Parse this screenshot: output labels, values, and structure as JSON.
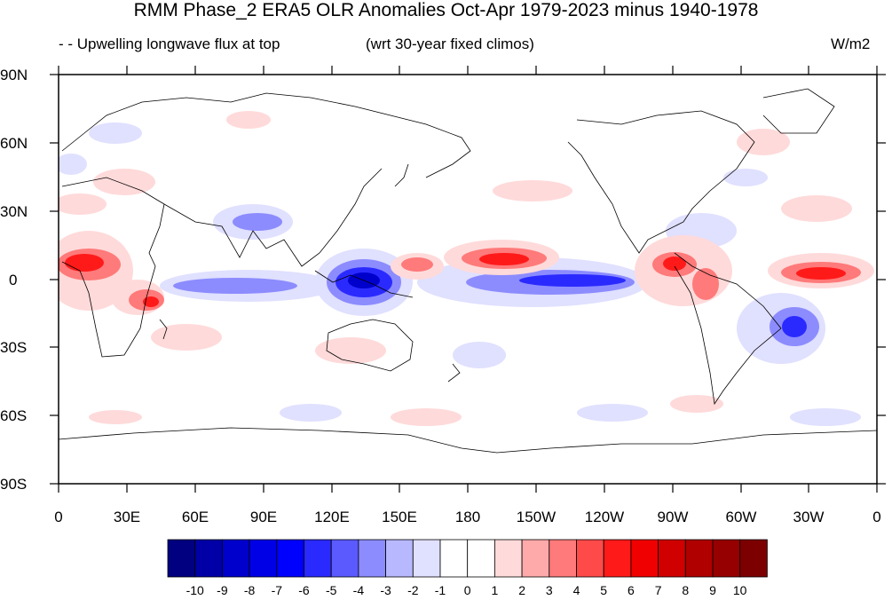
{
  "title": "RMM Phase_2 ERA5 OLR Anomalies Oct-Apr 1979-2023 minus 1940-1978",
  "subtitle_left": "- - Upwelling longwave flux at top",
  "subtitle_mid": "(wrt 30-year fixed climos)",
  "units": "W/m2",
  "lat_labels": [
    "90N",
    "60N",
    "30N",
    "0",
    "30S",
    "60S",
    "90S"
  ],
  "lon_labels": [
    "0",
    "30E",
    "60E",
    "90E",
    "120E",
    "150E",
    "180",
    "150W",
    "120W",
    "90W",
    "60W",
    "30W",
    "0"
  ],
  "colorbar": {
    "labels": [
      "-10",
      "-9",
      "-8",
      "-7",
      "-6",
      "-5",
      "-4",
      "-3",
      "-2",
      "-1",
      "0",
      "1",
      "2",
      "3",
      "4",
      "5",
      "6",
      "7",
      "8",
      "9",
      "10"
    ],
    "colors": [
      "#000080",
      "#0000a6",
      "#0000cc",
      "#0000e6",
      "#0000ff",
      "#2a2aff",
      "#5a5aff",
      "#8c8cff",
      "#b8b8ff",
      "#e0e0ff",
      "#ffffff",
      "#ffffff",
      "#ffdada",
      "#ffaaaa",
      "#ff7a7a",
      "#ff4a4a",
      "#ff1a1a",
      "#f00000",
      "#d00000",
      "#b00000",
      "#960000",
      "#7d0000"
    ]
  },
  "anomaly_colors": {
    "strong_negative": "#2a2aff",
    "moderate_negative": "#8c8cff",
    "weak_negative": "#e0e0ff",
    "weak_positive": "#ffdada",
    "moderate_positive": "#ff7a7a",
    "strong_positive": "#ff1a1a"
  }
}
